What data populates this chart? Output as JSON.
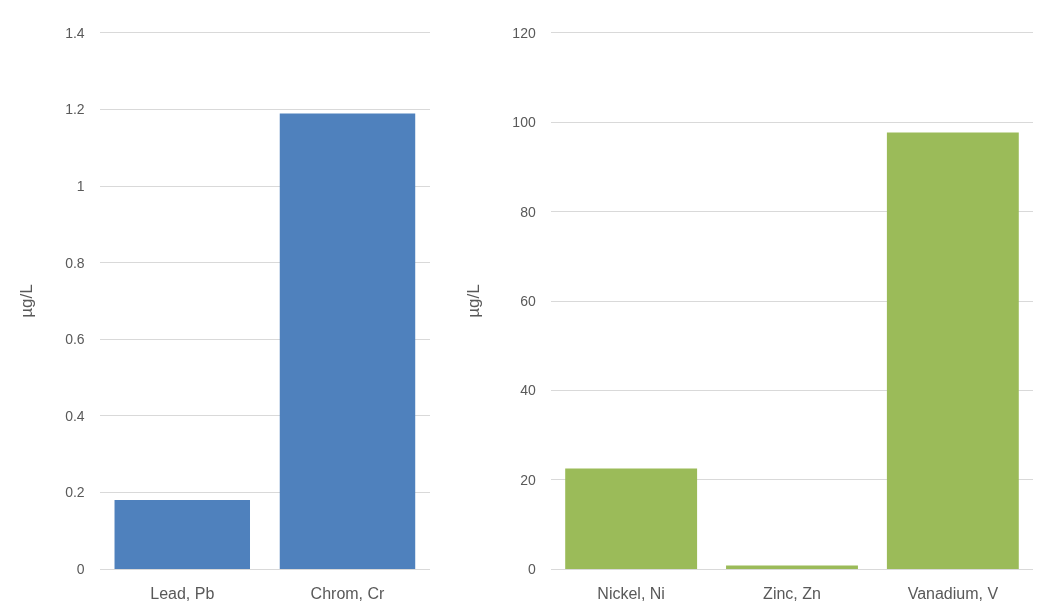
{
  "chart_data": [
    {
      "type": "bar",
      "ylabel": "µg/L",
      "categories": [
        "Lead, Pb",
        "Chrom, Cr"
      ],
      "values": [
        0.18,
        1.19
      ],
      "color": "#4f81bd",
      "ylim": [
        0,
        1.4
      ],
      "yticks": [
        0,
        0.2,
        0.4,
        0.6,
        0.8,
        1,
        1.2,
        1.4
      ],
      "grid": "y"
    },
    {
      "type": "bar",
      "ylabel": "µg/L",
      "categories": [
        "Nickel, Ni",
        "Zinc, Zn",
        "Vanadium, V"
      ],
      "values": [
        22.5,
        0.8,
        97.7
      ],
      "color": "#9bbb59",
      "ylim": [
        0,
        120
      ],
      "yticks": [
        0,
        20,
        40,
        60,
        80,
        100,
        120
      ],
      "grid": "y"
    }
  ]
}
